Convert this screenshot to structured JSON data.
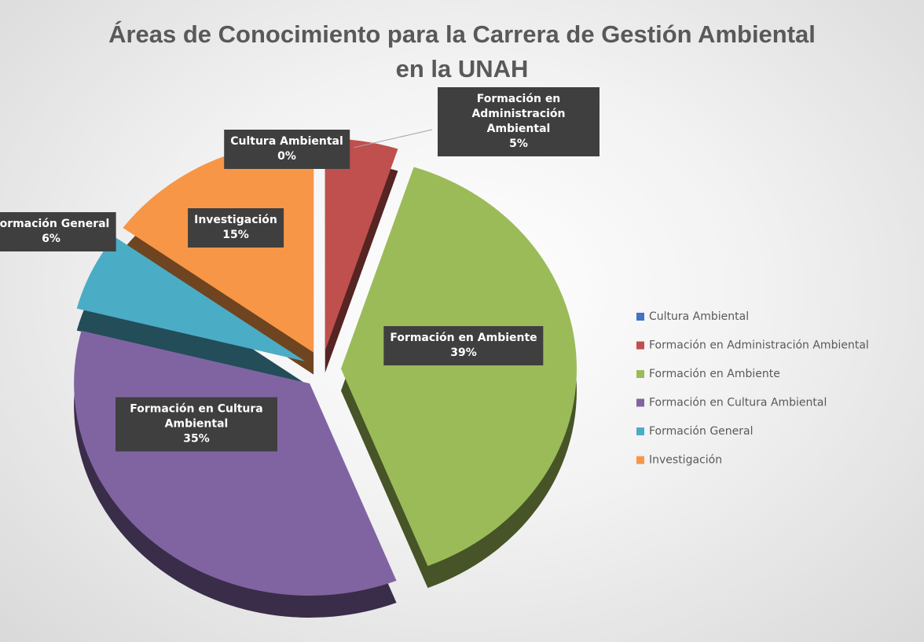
{
  "chart_data": {
    "type": "pie3d",
    "title": "Áreas de Conocimiento para la Carrera de Gestión Ambiental en la UNAH",
    "categories": [
      "Cultura Ambiental",
      "Formación en Administración Ambiental",
      "Formación en Ambiente",
      "Formación en Cultura Ambiental",
      "Formación General",
      "Investigación"
    ],
    "values": [
      0,
      5,
      39,
      35,
      6,
      15
    ],
    "value_labels": [
      "0%",
      "5%",
      "39%",
      "35%",
      "6%",
      "15%"
    ],
    "colors": [
      "#4472c4",
      "#c0504d",
      "#9bbb59",
      "#8064a2",
      "#4bacc6",
      "#f79646"
    ],
    "legend": "right"
  }
}
